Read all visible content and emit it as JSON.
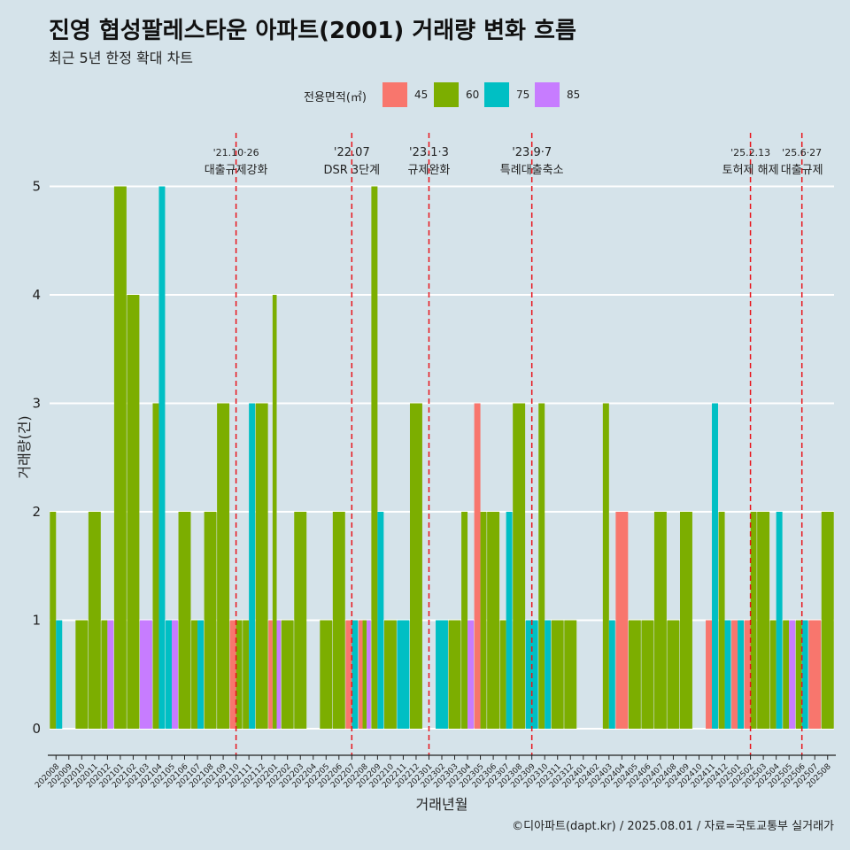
{
  "title": "진영 협성팔레스타운 아파트(2001) 거래량 변화 흐름",
  "subtitle": "최근 5년 한정 확대 차트",
  "caption": "©디아파트(dapt.kr) / 2025.08.01 / 자료=국토교통부 실거래가",
  "legend": {
    "title": "전용면적(㎡)",
    "items": [
      {
        "label": "45",
        "color": "#f8766d"
      },
      {
        "label": "60",
        "color": "#7cae00"
      },
      {
        "label": "75",
        "color": "#00bfc4"
      },
      {
        "label": "85",
        "color": "#c77cff"
      }
    ]
  },
  "chart_data": {
    "type": "bar",
    "xlabel": "거래년월",
    "ylabel": "거래량(건)",
    "ylim": [
      0,
      5
    ],
    "yticks": [
      0,
      1,
      2,
      3,
      4,
      5
    ],
    "grid": "horizontal",
    "legend_position": "top",
    "categories": [
      "202008",
      "202009",
      "202010",
      "202011",
      "202012",
      "202101",
      "202102",
      "202103",
      "202104",
      "202105",
      "202106",
      "202107",
      "202108",
      "202109",
      "202110",
      "202111",
      "202112",
      "202201",
      "202202",
      "202203",
      "202204",
      "202205",
      "202206",
      "202207",
      "202208",
      "202209",
      "202210",
      "202211",
      "202212",
      "202301",
      "202302",
      "202303",
      "202304",
      "202305",
      "202306",
      "202307",
      "202308",
      "202309",
      "202310",
      "202311",
      "202312",
      "202401",
      "202402",
      "202403",
      "202404",
      "202405",
      "202406",
      "202407",
      "202408",
      "202409",
      "202410",
      "202411",
      "202412",
      "202501",
      "202502",
      "202503",
      "202504",
      "202505",
      "202506",
      "202507",
      "202508"
    ],
    "series": [
      {
        "name": "45",
        "color": "#f8766d",
        "values": [
          0,
          0,
          0,
          0,
          0,
          0,
          0,
          0,
          0,
          0,
          0,
          0,
          0,
          0,
          1,
          0,
          0,
          1,
          0,
          0,
          0,
          0,
          0,
          1,
          1,
          0,
          0,
          0,
          0,
          0,
          0,
          0,
          0,
          3,
          0,
          0,
          0,
          0,
          0,
          0,
          0,
          0,
          0,
          0,
          2,
          0,
          0,
          0,
          0,
          0,
          0,
          1,
          0,
          1,
          1,
          0,
          0,
          0,
          0,
          1,
          0
        ]
      },
      {
        "name": "60",
        "color": "#7cae00",
        "values": [
          2,
          0,
          1,
          2,
          1,
          5,
          4,
          0,
          3,
          0,
          2,
          1,
          2,
          3,
          1,
          1,
          3,
          4,
          1,
          2,
          0,
          1,
          2,
          0,
          1,
          5,
          1,
          0,
          3,
          0,
          0,
          1,
          2,
          2,
          2,
          1,
          3,
          0,
          3,
          1,
          1,
          0,
          0,
          3,
          0,
          1,
          1,
          2,
          1,
          2,
          0,
          0,
          2,
          0,
          2,
          2,
          1,
          1,
          1,
          0,
          2
        ]
      },
      {
        "name": "75",
        "color": "#00bfc4",
        "values": [
          1,
          0,
          0,
          0,
          0,
          0,
          0,
          0,
          5,
          1,
          0,
          1,
          0,
          0,
          0,
          3,
          0,
          0,
          0,
          0,
          0,
          0,
          0,
          1,
          0,
          2,
          0,
          1,
          0,
          0,
          1,
          0,
          0,
          0,
          0,
          2,
          0,
          1,
          1,
          0,
          0,
          0,
          0,
          1,
          0,
          0,
          0,
          0,
          0,
          0,
          0,
          3,
          1,
          1,
          0,
          0,
          2,
          0,
          1,
          0,
          0
        ]
      },
      {
        "name": "85",
        "color": "#c77cff",
        "values": [
          0,
          0,
          0,
          0,
          1,
          0,
          0,
          1,
          0,
          1,
          0,
          0,
          0,
          0,
          0,
          0,
          0,
          1,
          0,
          0,
          0,
          0,
          0,
          0,
          1,
          0,
          0,
          0,
          0,
          0,
          0,
          0,
          1,
          0,
          0,
          0,
          0,
          0,
          0,
          0,
          0,
          0,
          0,
          0,
          0,
          0,
          0,
          0,
          0,
          0,
          0,
          0,
          0,
          0,
          0,
          0,
          0,
          1,
          0,
          0,
          0
        ]
      }
    ],
    "events": [
      {
        "date_label": "'21.10·26",
        "text": "대출규제강화",
        "at_category": "202110"
      },
      {
        "date_label": "'22.07",
        "text": "DSR 3단계",
        "at_category": "202207"
      },
      {
        "date_label": "'23.1·3",
        "text": "규제완화",
        "at_category": "202301"
      },
      {
        "date_label": "'23.9·7",
        "text": "특례대출축소",
        "at_category": "202309"
      },
      {
        "date_label": "'25.2.13",
        "text": "토허제 해제",
        "at_category": "202502"
      },
      {
        "date_label": "'25.6·27",
        "text": "대출규제",
        "at_category": "202506"
      }
    ]
  }
}
